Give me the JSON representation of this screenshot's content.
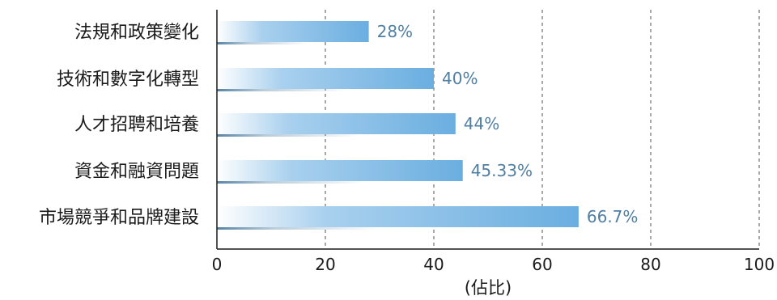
{
  "chart_data": {
    "type": "bar",
    "orientation": "horizontal",
    "categories": [
      "法規和政策變化",
      "技術和數字化轉型",
      "人才招聘和培養",
      "資金和融資問題",
      "市場競爭和品牌建設"
    ],
    "values": [
      28,
      40,
      44,
      45.33,
      66.7
    ],
    "data_labels": [
      "28%",
      "40%",
      "44%",
      "45.33%",
      "66.7%"
    ],
    "xlabel": "(佔比)",
    "xlim": [
      0,
      100
    ],
    "xticks": [
      0,
      20,
      40,
      60,
      80,
      100
    ],
    "tick_labels": [
      "0",
      "20",
      "40",
      "60",
      "80",
      "100"
    ],
    "grid": "vertical dashed",
    "colors": {
      "bar_start": "#ffffff",
      "bar_end": "#6aaee0",
      "label_color": "#4f7fa3",
      "grid": "#555555",
      "axis": "#1a1a1a"
    }
  }
}
